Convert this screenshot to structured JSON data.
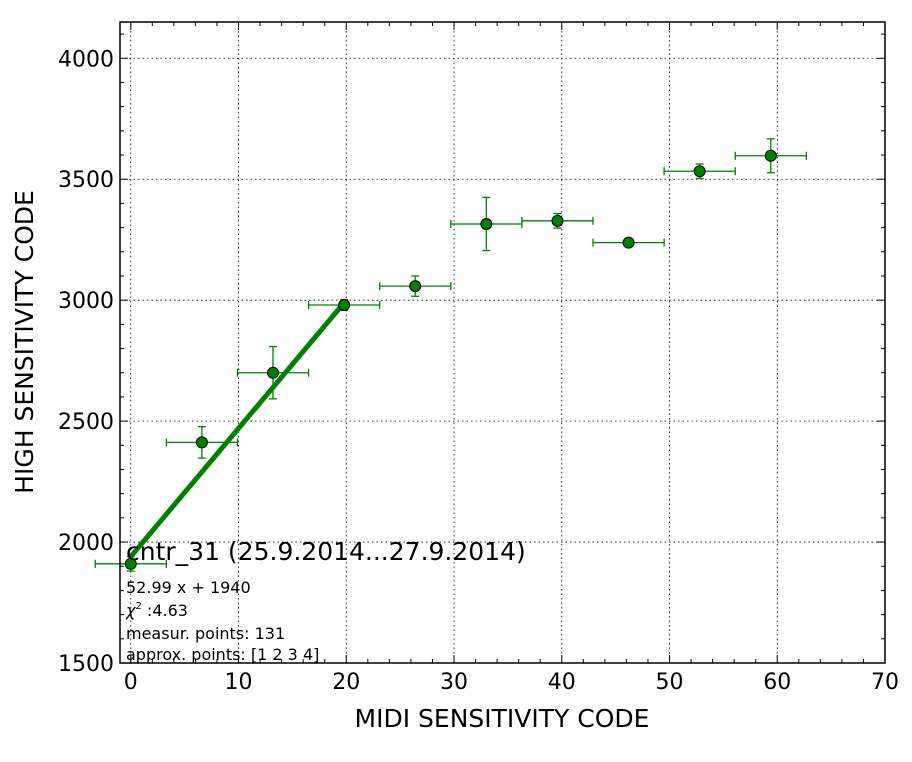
{
  "chart_data": {
    "type": "scatter",
    "xlabel": "MIDI SENSITIVITY CODE",
    "ylabel": "HIGH SENSITIVITY CODE",
    "xlim": [
      -1,
      70
    ],
    "ylim": [
      1500,
      4150
    ],
    "x_ticks": [
      0,
      10,
      20,
      30,
      40,
      50,
      60,
      70
    ],
    "y_ticks": [
      1500,
      2000,
      2500,
      3000,
      3500,
      4000
    ],
    "grid": true,
    "marker_color": "#008000",
    "errorbar_color": "#008000",
    "fit_line_color": "#008000",
    "points": [
      {
        "x": 0.0,
        "y": 1910,
        "xerr": 3.3,
        "yerr": 30
      },
      {
        "x": 6.6,
        "y": 2412,
        "xerr": 3.3,
        "yerr": 65
      },
      {
        "x": 13.2,
        "y": 2700,
        "xerr": 3.3,
        "yerr": 108
      },
      {
        "x": 19.8,
        "y": 2980,
        "xerr": 3.3,
        "yerr": 22
      },
      {
        "x": 26.4,
        "y": 3058,
        "xerr": 3.3,
        "yerr": 42
      },
      {
        "x": 33.0,
        "y": 3315,
        "xerr": 3.3,
        "yerr": 110
      },
      {
        "x": 39.6,
        "y": 3328,
        "xerr": 3.3,
        "yerr": 30
      },
      {
        "x": 46.2,
        "y": 3238,
        "xerr": 3.3,
        "yerr": 12
      },
      {
        "x": 52.8,
        "y": 3533,
        "xerr": 3.3,
        "yerr": 30
      },
      {
        "x": 59.4,
        "y": 3597,
        "xerr": 3.3,
        "yerr": 70
      }
    ],
    "fit": {
      "slope": 52.99,
      "intercept": 1940,
      "x_range": [
        0,
        19.8
      ]
    },
    "annotations": {
      "title": "cntr_31 (25.9.2014...27.9.2014)",
      "fit_equation": "52.99 x + 1940",
      "chi2_symbol": "χ",
      "chi2_exponent": "2",
      "chi2_value": " :4.63",
      "measur_points": "measur. points: 131",
      "approx_points": "approx. points: [1 2 3 4]"
    }
  }
}
